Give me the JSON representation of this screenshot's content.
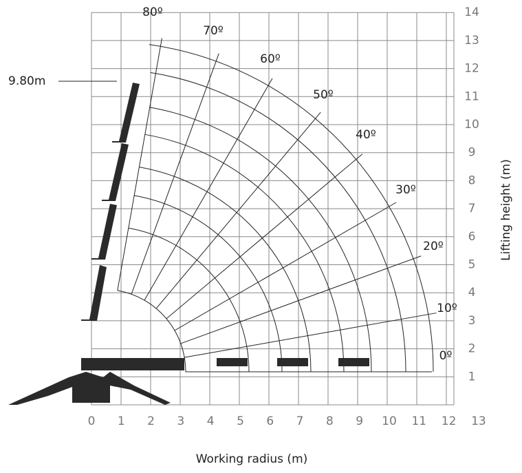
{
  "x_axis": {
    "label": "Working radius (m)",
    "ticks": [
      "0",
      "1",
      "2",
      "3",
      "4",
      "5",
      "6",
      "7",
      "8",
      "9",
      "10",
      "11",
      "12",
      "13"
    ]
  },
  "y_axis": {
    "label": "Lifting height (m)",
    "ticks": [
      "1",
      "2",
      "3",
      "4",
      "5",
      "6",
      "7",
      "8",
      "9",
      "10",
      "11",
      "12",
      "13",
      "14"
    ]
  },
  "angles": [
    "0º",
    "10º",
    "20º",
    "30º",
    "40º",
    "50º",
    "60º",
    "70º",
    "80º"
  ],
  "height_annotation": "9.80m"
}
